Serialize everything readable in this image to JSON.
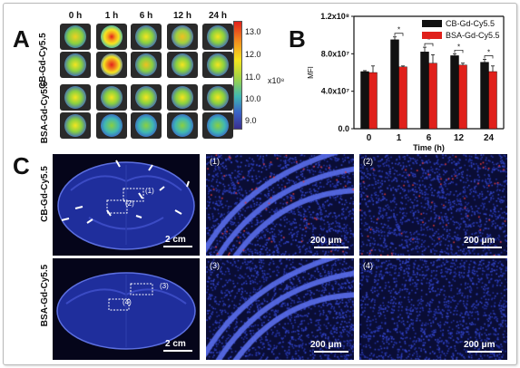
{
  "panel_a": {
    "letter": "A",
    "timepoints": [
      "0 h",
      "1 h",
      "6 h",
      "12 h",
      "24 h"
    ],
    "row_labels": [
      "CB-Gd-Cy5.5",
      "BSA-Gd-Cy5.5"
    ],
    "colorbar_ticks": [
      "13.0",
      "12.0",
      "11.0",
      "10.0",
      "9.0"
    ],
    "colorbar_unit": "x10⁸"
  },
  "panel_b": {
    "letter": "B",
    "legend": [
      "CB-Gd-Cy5.5",
      "BSA-Gd-Cy5.5"
    ],
    "ylabel": "MFI",
    "xlabel": "Time (h)",
    "yticks": [
      "0.0",
      "4.0x10⁷",
      "8.0x10⁷",
      "1.2x10⁸"
    ],
    "star": "*",
    "colors": {
      "cb": "#111111",
      "bsa": "#e0201b"
    }
  },
  "chart_data": {
    "type": "bar",
    "categories": [
      "0",
      "1",
      "6",
      "12",
      "24"
    ],
    "series": [
      {
        "name": "CB-Gd-Cy5.5",
        "values": [
          61000000,
          95000000,
          82000000,
          78000000,
          71000000
        ],
        "errors": [
          1000000,
          3000000,
          5000000,
          2000000,
          3000000
        ]
      },
      {
        "name": "BSA-Gd-Cy5.5",
        "values": [
          60000000,
          66000000,
          70000000,
          68000000,
          61000000
        ],
        "errors": [
          7000000,
          1000000,
          9000000,
          2000000,
          6000000
        ]
      }
    ],
    "xlabel": "Time (h)",
    "ylabel": "MFI",
    "ylim": [
      0,
      120000000
    ],
    "significance_marks": [
      "",
      "*",
      "*",
      "*",
      "*"
    ],
    "legend_position": "top-right"
  },
  "panel_c": {
    "letter": "C",
    "row_labels": [
      "CB-Gd-Cy5.5",
      "BSA-Gd-Cy5.5"
    ],
    "tags": [
      "(1)",
      "(2)",
      "(3)",
      "(4)"
    ],
    "brain_box_tags": [
      "(1)",
      "(2)",
      "(3)",
      "(4)"
    ],
    "scale_brain": "2 cm",
    "scale_micro": "200 μm"
  }
}
